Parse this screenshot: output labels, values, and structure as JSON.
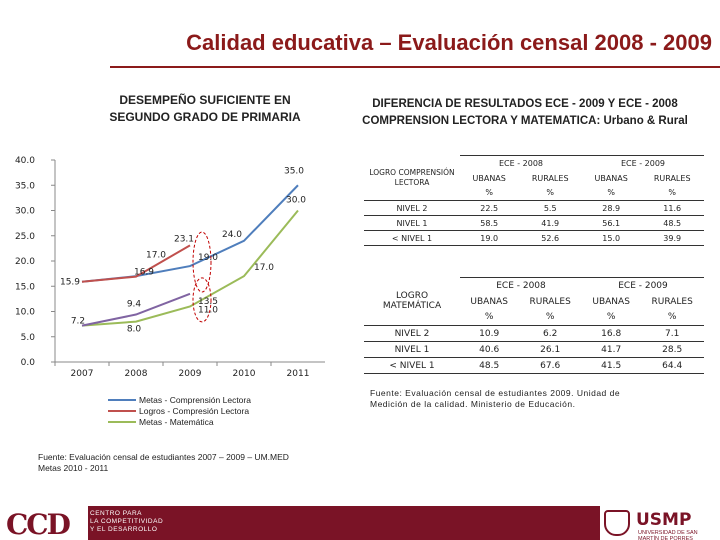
{
  "header": {
    "title": "Calidad educativa – Evaluación censal 2008 - 2009"
  },
  "left_chart": {
    "title_line1": "DESEMPEÑO SUFICIENTE EN",
    "title_line2": "SEGUNDO GRADO DE PRIMARIA",
    "legend": [
      "Metas - Comprensión Lectora",
      "Logros - Compresión Lectora",
      "Metas - Matemática"
    ],
    "source_line1": "Fuente: Evaluación censal de estudiantes 2007 – 2009 – UM.MED",
    "source_line2": "Metas 2010 - 2011"
  },
  "chart_data": {
    "type": "line",
    "x": [
      "2007",
      "2008",
      "2009",
      "2010",
      "2011"
    ],
    "ylim": [
      0,
      40
    ],
    "yticks": [
      "0.0",
      "5.0",
      "10.0",
      "15.0",
      "20.0",
      "25.0",
      "30.0",
      "35.0",
      "40.0"
    ],
    "series": [
      {
        "name": "Metas - Comprensión Lectora",
        "color": "#4f7ebc",
        "values": [
          15.9,
          17.0,
          19.0,
          24.0,
          35.0
        ]
      },
      {
        "name": "Logros - Compresión Lectora",
        "color": "#c0504d",
        "values": [
          15.9,
          16.9,
          23.1,
          null,
          null
        ]
      },
      {
        "name": "Metas - Matemática",
        "color": "#9bbb59",
        "values": [
          7.2,
          8.0,
          11.0,
          17.0,
          30.0
        ]
      },
      {
        "name": "",
        "color": "#8064a2",
        "values": [
          7.2,
          9.4,
          13.5,
          null,
          null
        ]
      }
    ],
    "data_labels": [
      {
        "x": "2007",
        "y": 15.9,
        "text": "15.9"
      },
      {
        "x": "2008",
        "y": 16.9,
        "text": "16.9"
      },
      {
        "x": "2008",
        "y": 19.5,
        "text": "17.0"
      },
      {
        "x": "2009",
        "y": 19.0,
        "text": "19.0"
      },
      {
        "x": "2009",
        "y": 23.1,
        "text": "23.1"
      },
      {
        "x": "2010",
        "y": 24.0,
        "text": "24.0"
      },
      {
        "x": "2011",
        "y": 35.0,
        "text": "35.0"
      },
      {
        "x": "2011",
        "y": 30.0,
        "text": "30.0"
      },
      {
        "x": "2010",
        "y": 17.0,
        "text": "17.0"
      },
      {
        "x": "2009",
        "y": 13.5,
        "text": "13.5"
      },
      {
        "x": "2009",
        "y": 11.0,
        "text": "11.0"
      },
      {
        "x": "2008",
        "y": 9.4,
        "text": "9.4"
      },
      {
        "x": "2008",
        "y": 8.0,
        "text": "8.0"
      },
      {
        "x": "2007",
        "y": 7.2,
        "text": "7.2"
      }
    ]
  },
  "right": {
    "title_line1": "DIFERENCIA DE RESULTADOS ECE - 2009 Y ECE - 2008",
    "title_line2": "COMPRENSION LECTORA  Y MATEMATICA: Urbano  & Rural",
    "source_line1": "Fuente: Evaluación censal de estudiantes 2009. Unidad de",
    "source_line2": "Medición de la calidad. Ministerio de Educación."
  },
  "table_lectora": {
    "row_header": "LOGRO COMPRENSIÓN LECTORA",
    "groups": [
      "ECE - 2008",
      "ECE - 2009"
    ],
    "cols": [
      "UBANAS",
      "RURALES",
      "UBANAS",
      "RURALES"
    ],
    "units": [
      "%",
      "%",
      "%",
      "%"
    ],
    "rows": [
      {
        "label": "NIVEL 2",
        "values": [
          "22.5",
          "5.5",
          "28.9",
          "11.6"
        ]
      },
      {
        "label": "NIVEL 1",
        "values": [
          "58.5",
          "41.9",
          "56.1",
          "48.5"
        ]
      },
      {
        "label": "< NIVEL 1",
        "values": [
          "19.0",
          "52.6",
          "15.0",
          "39.9"
        ]
      }
    ]
  },
  "table_matematica": {
    "row_header": "LOGRO MATEMÁTICA",
    "groups": [
      "ECE - 2008",
      "ECE - 2009"
    ],
    "cols": [
      "UBANAS",
      "RURALES",
      "UBANAS",
      "RURALES"
    ],
    "units": [
      "%",
      "%",
      "%",
      "%"
    ],
    "rows": [
      {
        "label": "NIVEL 2",
        "values": [
          "10.9",
          "6.2",
          "16.8",
          "7.1"
        ]
      },
      {
        "label": "NIVEL 1",
        "values": [
          "40.6",
          "26.1",
          "41.7",
          "28.5"
        ]
      },
      {
        "label": "< NIVEL 1",
        "values": [
          "48.5",
          "67.6",
          "41.5",
          "64.4"
        ]
      }
    ]
  },
  "footer": {
    "ccd_logo": "CCD",
    "ccd_line1": "CENTRO PARA",
    "ccd_line2": "LA COMPETITIVIDAD",
    "ccd_line3": "Y EL DESARROLLO",
    "usmp_name": "USMP",
    "usmp_sub": "UNIVERSIDAD DE SAN MARTÍN DE PORRES"
  }
}
